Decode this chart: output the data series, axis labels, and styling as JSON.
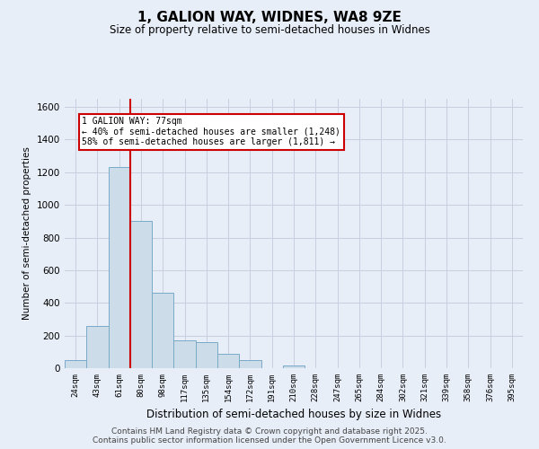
{
  "title1": "1, GALION WAY, WIDNES, WA8 9ZE",
  "title2": "Size of property relative to semi-detached houses in Widnes",
  "xlabel": "Distribution of semi-detached houses by size in Widnes",
  "ylabel": "Number of semi-detached properties",
  "categories": [
    "24sqm",
    "43sqm",
    "61sqm",
    "80sqm",
    "98sqm",
    "117sqm",
    "135sqm",
    "154sqm",
    "172sqm",
    "191sqm",
    "210sqm",
    "228sqm",
    "247sqm",
    "265sqm",
    "284sqm",
    "302sqm",
    "321sqm",
    "339sqm",
    "358sqm",
    "376sqm",
    "395sqm"
  ],
  "values": [
    50,
    260,
    1230,
    900,
    460,
    170,
    160,
    90,
    50,
    0,
    15,
    0,
    0,
    0,
    0,
    0,
    0,
    0,
    0,
    0,
    0
  ],
  "bar_color": "#ccdce8",
  "bar_edge_color": "#7aaac8",
  "red_line_color": "#cc0000",
  "annotation_text": "1 GALION WAY: 77sqm\n← 40% of semi-detached houses are smaller (1,248)\n58% of semi-detached houses are larger (1,811) →",
  "annotation_box_color": "#cc0000",
  "ylim": [
    0,
    1650
  ],
  "yticks": [
    0,
    200,
    400,
    600,
    800,
    1000,
    1200,
    1400,
    1600
  ],
  "footer1": "Contains HM Land Registry data © Crown copyright and database right 2025.",
  "footer2": "Contains public sector information licensed under the Open Government Licence v3.0.",
  "background_color": "#e8eef8",
  "grid_color": "#c8d0e0"
}
